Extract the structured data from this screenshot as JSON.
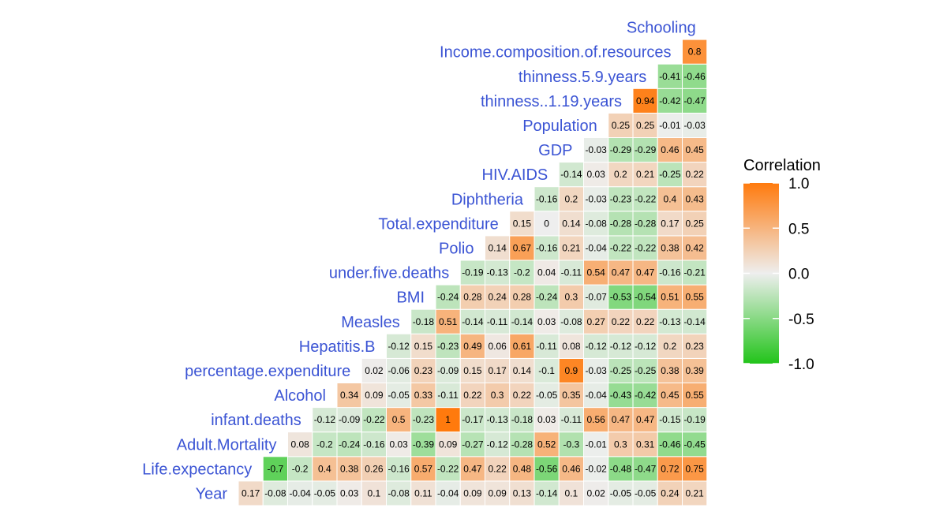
{
  "chart_data": {
    "type": "heatmap",
    "variables": [
      "Year",
      "Life.expectancy",
      "Adult.Mortality",
      "infant.deaths",
      "Alcohol",
      "percentage.expenditure",
      "Hepatitis.B",
      "Measles",
      "BMI",
      "under.five.deaths",
      "Polio",
      "Total.expenditure",
      "Diphtheria",
      "HIV.AIDS",
      "GDP",
      "Population",
      "thinness..1.19.years",
      "thinness.5.9.years",
      "Income.composition.of.resources",
      "Schooling"
    ],
    "rows": [
      [
        0.17,
        -0.08,
        -0.04,
        -0.05,
        0.03,
        0.1,
        -0.08,
        0.11,
        -0.04,
        0.09,
        0.09,
        0.13,
        -0.14,
        0.1,
        0.02,
        -0.05,
        -0.05,
        0.24,
        0.21
      ],
      [
        -0.7,
        -0.2,
        0.4,
        0.38,
        0.26,
        -0.16,
        0.57,
        -0.22,
        0.47,
        0.22,
        0.48,
        -0.56,
        0.46,
        -0.02,
        -0.48,
        -0.47,
        0.72,
        0.75
      ],
      [
        0.08,
        -0.2,
        -0.24,
        -0.16,
        0.03,
        -0.39,
        0.09,
        -0.27,
        -0.12,
        -0.28,
        0.52,
        -0.3,
        -0.01,
        0.3,
        0.31,
        -0.46,
        -0.45
      ],
      [
        -0.12,
        -0.09,
        -0.22,
        0.5,
        -0.23,
        1,
        -0.17,
        -0.13,
        -0.18,
        0.03,
        -0.11,
        0.56,
        0.47,
        0.47,
        -0.15,
        -0.19
      ],
      [
        0.34,
        0.09,
        -0.05,
        0.33,
        -0.11,
        0.22,
        0.3,
        0.22,
        -0.05,
        0.35,
        -0.04,
        -0.43,
        -0.42,
        0.45,
        0.55
      ],
      [
        0.02,
        -0.06,
        0.23,
        -0.09,
        0.15,
        0.17,
        0.14,
        -0.1,
        0.9,
        -0.03,
        -0.25,
        -0.25,
        0.38,
        0.39
      ],
      [
        -0.12,
        0.15,
        -0.23,
        0.49,
        0.06,
        0.61,
        -0.11,
        0.08,
        -0.12,
        -0.12,
        -0.12,
        0.2,
        0.23
      ],
      [
        -0.18,
        0.51,
        -0.14,
        -0.11,
        -0.14,
        0.03,
        -0.08,
        0.27,
        0.22,
        0.22,
        -0.13,
        -0.14
      ],
      [
        -0.24,
        0.28,
        0.24,
        0.28,
        -0.24,
        0.3,
        -0.07,
        -0.53,
        -0.54,
        0.51,
        0.55
      ],
      [
        -0.19,
        -0.13,
        -0.2,
        0.04,
        -0.11,
        0.54,
        0.47,
        0.47,
        -0.16,
        -0.21
      ],
      [
        0.14,
        0.67,
        -0.16,
        0.21,
        -0.04,
        -0.22,
        -0.22,
        0.38,
        0.42
      ],
      [
        0.15,
        0,
        0.14,
        -0.08,
        -0.28,
        -0.28,
        0.17,
        0.25
      ],
      [
        -0.16,
        0.2,
        -0.03,
        -0.23,
        -0.22,
        0.4,
        0.43
      ],
      [
        -0.14,
        0.03,
        0.2,
        0.21,
        -0.25,
        0.22
      ],
      [
        -0.03,
        -0.29,
        -0.29,
        0.46,
        0.45
      ],
      [
        0.25,
        0.25,
        -0.01,
        -0.03
      ],
      [
        0.94,
        -0.42,
        -0.47
      ],
      [
        -0.41,
        -0.46
      ],
      [
        0.8
      ],
      []
    ],
    "legend": {
      "title": "Correlation",
      "ticks": [
        "1.0",
        "0.5",
        "0.0",
        "-0.5",
        "-1.0"
      ],
      "range": [
        -1,
        1
      ]
    },
    "colors": {
      "low": "#22c41a",
      "mid": "#eeeeee",
      "high": "#ff7a0d",
      "label": "#3b54d4"
    }
  }
}
